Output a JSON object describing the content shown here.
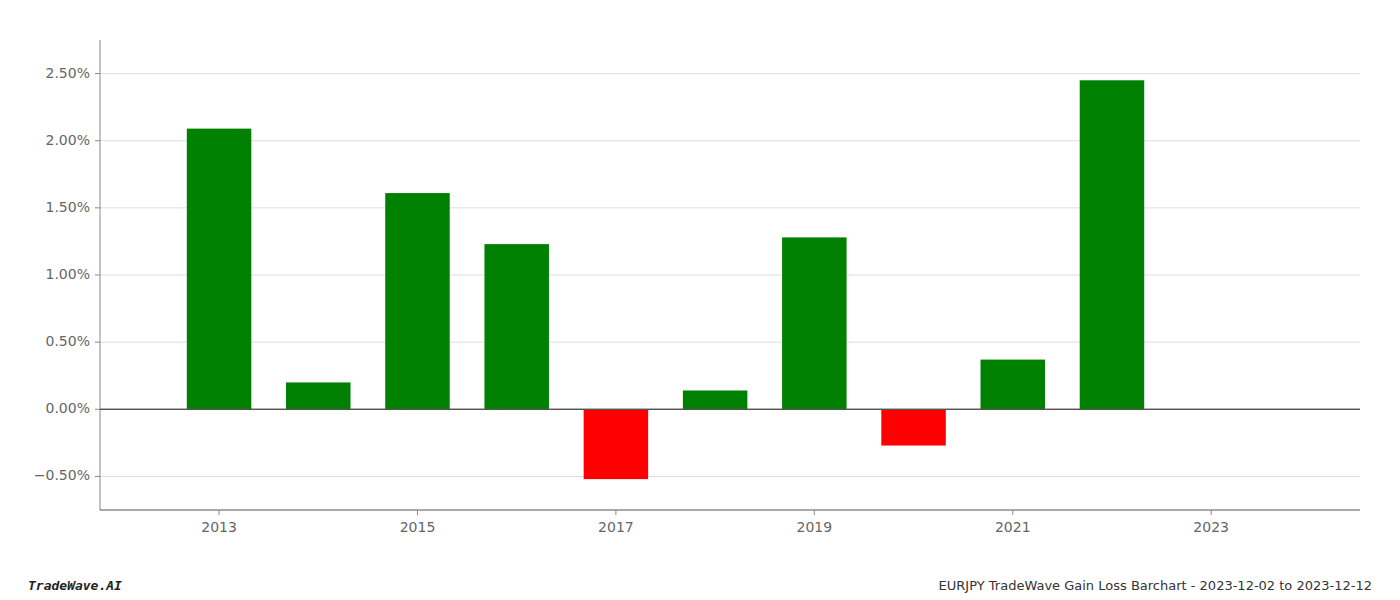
{
  "chart_data": {
    "type": "bar",
    "x": [
      2013,
      2014,
      2015,
      2016,
      2017,
      2018,
      2019,
      2020,
      2021,
      2022
    ],
    "values": [
      2.09,
      0.2,
      1.61,
      1.23,
      -0.52,
      0.14,
      1.28,
      -0.27,
      0.37,
      2.45
    ],
    "colors": [
      "#008000",
      "#008000",
      "#008000",
      "#008000",
      "#ff0000",
      "#008000",
      "#008000",
      "#ff0000",
      "#008000",
      "#008000"
    ],
    "xlim": [
      2011.8,
      2024.5
    ],
    "xticks": [
      2013,
      2015,
      2017,
      2019,
      2021,
      2023
    ],
    "ylim": [
      -0.75,
      2.75
    ],
    "yticks": [
      {
        "value": -0.5,
        "label": "−0.50%"
      },
      {
        "value": 0.0,
        "label": "0.00%"
      },
      {
        "value": 0.5,
        "label": "0.50%"
      },
      {
        "value": 1.0,
        "label": "1.00%"
      },
      {
        "value": 1.5,
        "label": "1.50%"
      },
      {
        "value": 2.0,
        "label": "2.00%"
      },
      {
        "value": 2.5,
        "label": "2.50%"
      }
    ],
    "grid": true,
    "annotations": [
      "TradeWave.AI",
      "EURJPY TradeWave Gain Loss Barchart - 2023-12-02 to 2023-12-12"
    ]
  }
}
